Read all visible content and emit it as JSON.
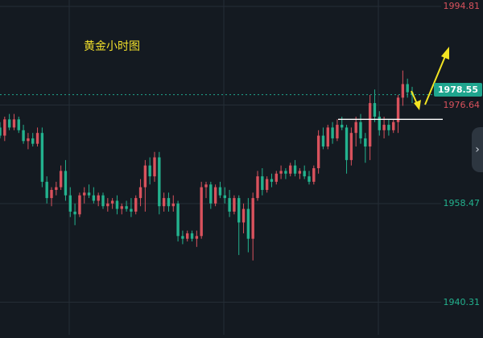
{
  "chart_data": {
    "type": "candlestick",
    "title": "黄金小时图",
    "ylim": [
      1932,
      1998
    ],
    "grid": true,
    "yticks": [
      {
        "label": "1994.81",
        "value": 1994.81,
        "color": "#d9525d"
      },
      {
        "label": "1976.64",
        "value": 1976.64,
        "color": "#d9525d"
      },
      {
        "label": "1958.47",
        "value": 1958.47,
        "color": "#23b28e"
      },
      {
        "label": "1940.31",
        "value": 1940.31,
        "color": "#23b28e"
      }
    ],
    "last_price": {
      "label": "1978.55",
      "value": 1978.55
    },
    "support_level": 1974.0,
    "candles": [
      [
        1972.5,
        1973.5,
        1970.5,
        1971.0
      ],
      [
        1971.0,
        1974.5,
        1970.0,
        1974.0
      ],
      [
        1974.0,
        1975.0,
        1972.0,
        1972.5
      ],
      [
        1972.5,
        1975.0,
        1972.0,
        1974.0
      ],
      [
        1974.0,
        1974.5,
        1971.5,
        1972.0
      ],
      [
        1972.0,
        1973.0,
        1969.5,
        1970.0
      ],
      [
        1970.0,
        1971.5,
        1968.5,
        1970.5
      ],
      [
        1970.5,
        1971.5,
        1969.0,
        1969.5
      ],
      [
        1969.5,
        1972.5,
        1969.0,
        1971.5
      ],
      [
        1971.5,
        1972.5,
        1961.5,
        1962.5
      ],
      [
        1962.5,
        1963.5,
        1958.5,
        1959.5
      ],
      [
        1959.5,
        1961.5,
        1958.0,
        1961.0
      ],
      [
        1961.0,
        1962.5,
        1960.0,
        1961.5
      ],
      [
        1961.5,
        1965.5,
        1961.0,
        1964.5
      ],
      [
        1964.5,
        1966.5,
        1959.0,
        1960.0
      ],
      [
        1960.0,
        1961.5,
        1956.0,
        1957.0
      ],
      [
        1957.0,
        1958.5,
        1954.5,
        1956.5
      ],
      [
        1956.5,
        1960.5,
        1956.0,
        1960.0
      ],
      [
        1960.0,
        1961.5,
        1958.5,
        1960.5
      ],
      [
        1960.5,
        1962.0,
        1959.5,
        1960.0
      ],
      [
        1960.0,
        1961.5,
        1958.5,
        1959.0
      ],
      [
        1959.0,
        1960.5,
        1958.0,
        1960.0
      ],
      [
        1960.0,
        1960.5,
        1957.5,
        1958.0
      ],
      [
        1958.0,
        1959.5,
        1957.0,
        1958.5
      ],
      [
        1958.5,
        1959.5,
        1957.5,
        1959.0
      ],
      [
        1959.0,
        1960.0,
        1956.5,
        1957.5
      ],
      [
        1957.5,
        1958.5,
        1956.5,
        1958.0
      ],
      [
        1958.0,
        1959.0,
        1957.0,
        1957.5
      ],
      [
        1957.5,
        1959.5,
        1956.0,
        1957.0
      ],
      [
        1957.0,
        1960.0,
        1956.5,
        1959.5
      ],
      [
        1959.5,
        1963.0,
        1958.0,
        1961.5
      ],
      [
        1961.5,
        1966.5,
        1957.0,
        1965.5
      ],
      [
        1965.5,
        1967.0,
        1962.0,
        1963.5
      ],
      [
        1963.5,
        1968.0,
        1962.5,
        1967.0
      ],
      [
        1967.0,
        1968.0,
        1956.5,
        1958.0
      ],
      [
        1958.0,
        1960.5,
        1957.0,
        1959.5
      ],
      [
        1959.5,
        1960.5,
        1957.0,
        1958.0
      ],
      [
        1958.0,
        1960.0,
        1957.0,
        1958.5
      ],
      [
        1958.5,
        1959.0,
        1951.5,
        1952.5
      ],
      [
        1952.5,
        1953.5,
        1951.0,
        1952.0
      ],
      [
        1952.0,
        1953.5,
        1951.5,
        1953.0
      ],
      [
        1953.0,
        1953.5,
        1951.5,
        1952.0
      ],
      [
        1952.0,
        1953.5,
        1950.5,
        1952.5
      ],
      [
        1952.5,
        1962.5,
        1952.0,
        1961.5
      ],
      [
        1961.5,
        1962.5,
        1959.5,
        1962.0
      ],
      [
        1962.0,
        1962.5,
        1957.5,
        1958.5
      ],
      [
        1958.5,
        1962.0,
        1958.0,
        1961.5
      ],
      [
        1961.5,
        1962.5,
        1959.5,
        1960.0
      ],
      [
        1960.0,
        1961.5,
        1958.5,
        1959.5
      ],
      [
        1959.5,
        1961.0,
        1956.0,
        1957.0
      ],
      [
        1957.0,
        1960.0,
        1956.5,
        1959.5
      ],
      [
        1959.5,
        1960.0,
        1949.0,
        1955.0
      ],
      [
        1955.0,
        1958.5,
        1953.0,
        1957.5
      ],
      [
        1957.5,
        1959.5,
        1949.5,
        1952.0
      ],
      [
        1952.0,
        1960.5,
        1948.0,
        1959.5
      ],
      [
        1959.5,
        1964.5,
        1959.0,
        1963.5
      ],
      [
        1963.5,
        1965.0,
        1960.0,
        1961.0
      ],
      [
        1961.0,
        1963.5,
        1960.5,
        1963.0
      ],
      [
        1963.0,
        1964.0,
        1961.5,
        1962.5
      ],
      [
        1962.5,
        1964.5,
        1962.0,
        1964.0
      ],
      [
        1964.0,
        1965.5,
        1963.0,
        1964.5
      ],
      [
        1964.5,
        1965.0,
        1963.0,
        1964.0
      ],
      [
        1964.0,
        1966.0,
        1963.5,
        1965.5
      ],
      [
        1965.5,
        1966.5,
        1963.5,
        1964.0
      ],
      [
        1964.0,
        1965.0,
        1963.0,
        1964.5
      ],
      [
        1964.5,
        1965.5,
        1963.0,
        1963.5
      ],
      [
        1963.5,
        1964.5,
        1962.0,
        1962.5
      ],
      [
        1962.5,
        1965.5,
        1962.0,
        1965.0
      ],
      [
        1965.0,
        1972.0,
        1964.0,
        1971.0
      ],
      [
        1971.0,
        1972.5,
        1968.5,
        1969.0
      ],
      [
        1969.0,
        1973.0,
        1968.5,
        1972.5
      ],
      [
        1972.5,
        1973.5,
        1969.5,
        1970.5
      ],
      [
        1970.5,
        1974.0,
        1970.0,
        1973.0
      ],
      [
        1973.0,
        1974.5,
        1972.0,
        1972.5
      ],
      [
        1972.5,
        1973.0,
        1964.0,
        1966.5
      ],
      [
        1966.5,
        1972.5,
        1965.5,
        1971.5
      ],
      [
        1971.5,
        1974.5,
        1969.0,
        1973.5
      ],
      [
        1973.5,
        1975.0,
        1969.5,
        1970.5
      ],
      [
        1970.5,
        1971.5,
        1966.0,
        1969.0
      ],
      [
        1969.0,
        1978.5,
        1966.5,
        1977.0
      ],
      [
        1977.0,
        1979.5,
        1973.5,
        1974.5
      ],
      [
        1974.5,
        1975.5,
        1971.0,
        1972.0
      ],
      [
        1972.0,
        1974.5,
        1970.5,
        1973.0
      ],
      [
        1973.0,
        1974.0,
        1971.0,
        1972.0
      ],
      [
        1972.0,
        1974.0,
        1971.5,
        1973.5
      ],
      [
        1973.5,
        1978.5,
        1971.5,
        1978.0
      ],
      [
        1978.0,
        1983.0,
        1976.5,
        1980.5
      ],
      [
        1980.5,
        1981.5,
        1978.0,
        1979.0
      ],
      [
        1979.0,
        1980.0,
        1977.0,
        1978.5
      ]
    ]
  }
}
